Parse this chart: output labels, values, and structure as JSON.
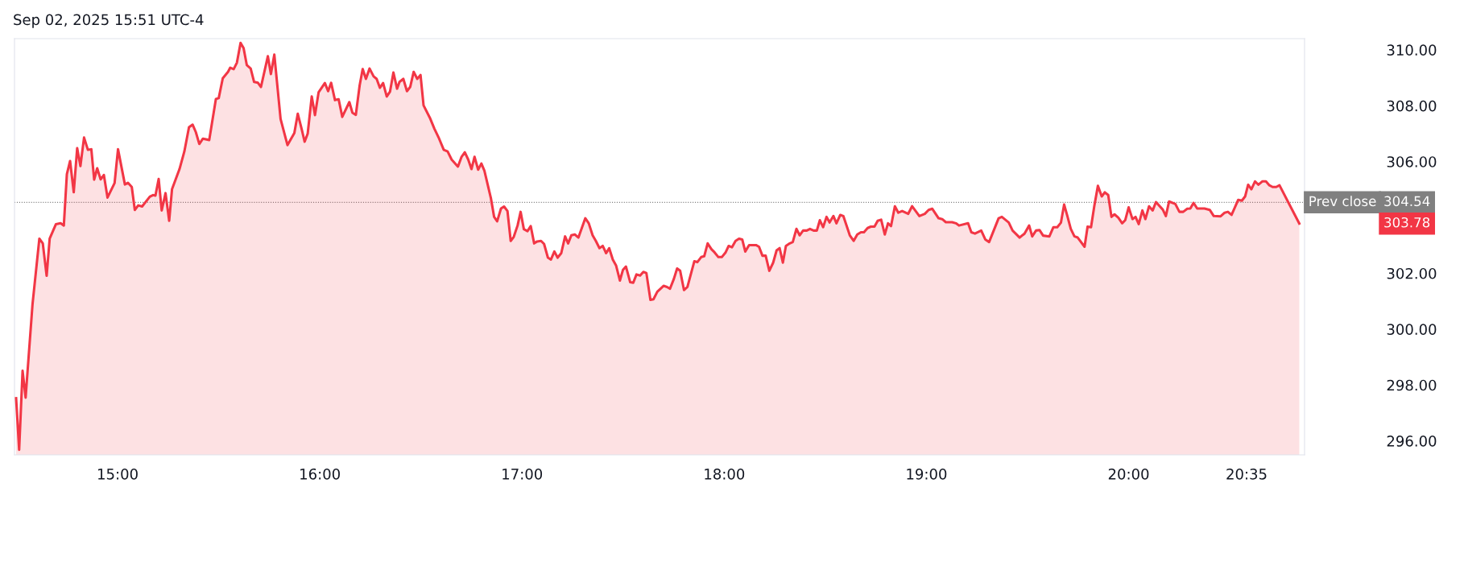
{
  "chart_data": {
    "type": "area",
    "annotations": [
      "Sep 02, 2025 15:51 UTC-4",
      "304.54",
      "303.78"
    ],
    "x": [
      14.498,
      14.513,
      14.53,
      14.545,
      14.579,
      14.613,
      14.63,
      14.649,
      14.664,
      14.695,
      14.718,
      14.734,
      14.749,
      14.765,
      14.783,
      14.8,
      14.816,
      14.834,
      14.853,
      14.87,
      14.884,
      14.899,
      14.916,
      14.932,
      14.95,
      14.985,
      15.002,
      15.036,
      15.051,
      15.07,
      15.085,
      15.102,
      15.121,
      15.159,
      15.175,
      15.187,
      15.203,
      15.218,
      15.237,
      15.255,
      15.269,
      15.306,
      15.33,
      15.353,
      15.371,
      15.387,
      15.404,
      15.422,
      15.453,
      15.486,
      15.5,
      15.52,
      15.546,
      15.557,
      15.574,
      15.59,
      15.608,
      15.623,
      15.639,
      15.658,
      15.675,
      15.694,
      15.709,
      15.743,
      15.758,
      15.775,
      15.806,
      15.84,
      15.874,
      15.891,
      15.91,
      15.925,
      15.94,
      15.96,
      15.976,
      15.994,
      16.025,
      16.041,
      16.056,
      16.075,
      16.093,
      16.111,
      16.146,
      16.161,
      16.178,
      16.197,
      16.212,
      16.228,
      16.246,
      16.266,
      16.281,
      16.297,
      16.313,
      16.331,
      16.347,
      16.364,
      16.382,
      16.394,
      16.413,
      16.431,
      16.447,
      16.464,
      16.482,
      16.498,
      16.513,
      16.544,
      16.567,
      16.59,
      16.613,
      16.632,
      16.652,
      16.683,
      16.701,
      16.717,
      16.734,
      16.75,
      16.765,
      16.783,
      16.799,
      16.814,
      16.846,
      16.862,
      16.877,
      16.896,
      16.911,
      16.928,
      16.944,
      16.959,
      16.978,
      16.993,
      17.009,
      17.027,
      17.043,
      17.06,
      17.075,
      17.094,
      17.109,
      17.128,
      17.143,
      17.16,
      17.176,
      17.194,
      17.213,
      17.228,
      17.244,
      17.261,
      17.279,
      17.313,
      17.33,
      17.349,
      17.365,
      17.383,
      17.399,
      17.416,
      17.431,
      17.449,
      17.465,
      17.484,
      17.499,
      17.514,
      17.535,
      17.55,
      17.566,
      17.584,
      17.6,
      17.615,
      17.635,
      17.65,
      17.669,
      17.685,
      17.7,
      17.717,
      17.732,
      17.751,
      17.767,
      17.782,
      17.801,
      17.818,
      17.852,
      17.867,
      17.886,
      17.901,
      17.918,
      17.937,
      17.952,
      17.971,
      17.988,
      18.007,
      18.022,
      18.038,
      18.056,
      18.073,
      18.089,
      18.104,
      18.123,
      18.157,
      18.172,
      18.189,
      18.205,
      18.223,
      18.242,
      18.259,
      18.274,
      18.29,
      18.305,
      18.324,
      18.339,
      18.357,
      18.373,
      18.39,
      18.408,
      18.424,
      18.442,
      18.458,
      18.473,
      18.489,
      18.506,
      18.521,
      18.54,
      18.555,
      18.574,
      18.589,
      18.621,
      18.64,
      18.658,
      18.676,
      18.691,
      18.709,
      18.725,
      18.743,
      18.759,
      18.776,
      18.794,
      18.81,
      18.825,
      18.844,
      18.861,
      18.88,
      18.91,
      18.929,
      18.965,
      18.992,
      19.011,
      19.029,
      19.06,
      19.078,
      19.096,
      19.127,
      19.146,
      19.161,
      19.206,
      19.222,
      19.24,
      19.271,
      19.291,
      19.31,
      19.357,
      19.373,
      19.407,
      19.426,
      19.461,
      19.485,
      19.508,
      19.523,
      19.542,
      19.559,
      19.577,
      19.608,
      19.628,
      19.647,
      19.665,
      19.681,
      19.697,
      19.714,
      19.732,
      19.748,
      19.782,
      19.797,
      19.814,
      19.83,
      19.848,
      19.867,
      19.882,
      19.899,
      19.915,
      19.93,
      19.949,
      19.968,
      19.983,
      20.0,
      20.019,
      20.034,
      20.05,
      20.068,
      20.083,
      20.101,
      20.119,
      20.135,
      20.169,
      20.184,
      20.2,
      20.231,
      20.251,
      20.27,
      20.29,
      20.305,
      20.321,
      20.339,
      20.375,
      20.401,
      20.421,
      20.455,
      20.475,
      20.491,
      20.509,
      20.542,
      20.56,
      20.576,
      20.591,
      20.607,
      20.625,
      20.642,
      20.661,
      20.679,
      20.696,
      20.712,
      20.73,
      20.746,
      20.844
    ],
    "series": [
      {
        "color": "#f23645",
        "values": [
          297.53,
          295.68,
          298.51,
          297.55,
          300.88,
          303.24,
          303.07,
          301.91,
          303.24,
          303.76,
          303.79,
          303.71,
          305.55,
          306.02,
          304.9,
          306.48,
          305.84,
          306.86,
          306.42,
          306.44,
          305.35,
          305.76,
          305.36,
          305.52,
          304.71,
          305.23,
          306.44,
          305.18,
          305.24,
          305.09,
          304.27,
          304.43,
          304.39,
          304.74,
          304.8,
          304.78,
          305.38,
          304.25,
          304.87,
          303.88,
          305.01,
          305.73,
          306.36,
          307.23,
          307.32,
          307.05,
          306.63,
          306.82,
          306.77,
          308.24,
          308.27,
          308.98,
          309.21,
          309.36,
          309.31,
          309.54,
          310.25,
          310.06,
          309.45,
          309.33,
          308.85,
          308.82,
          308.67,
          309.77,
          309.13,
          309.83,
          307.52,
          306.59,
          307.02,
          307.71,
          307.17,
          306.71,
          307.0,
          308.33,
          307.66,
          308.48,
          308.81,
          308.52,
          308.82,
          308.2,
          308.23,
          307.6,
          308.13,
          307.75,
          307.67,
          308.73,
          309.31,
          308.96,
          309.33,
          309.05,
          308.96,
          308.64,
          308.81,
          308.33,
          308.5,
          309.19,
          308.61,
          308.85,
          308.96,
          308.52,
          308.67,
          309.21,
          308.96,
          309.1,
          308.01,
          307.57,
          307.17,
          306.82,
          306.42,
          306.36,
          306.07,
          305.82,
          306.17,
          306.33,
          306.07,
          305.73,
          306.17,
          305.71,
          305.93,
          305.67,
          304.69,
          304.02,
          303.86,
          304.32,
          304.39,
          304.23,
          303.16,
          303.3,
          303.71,
          304.2,
          303.58,
          303.51,
          303.69,
          303.07,
          303.14,
          303.16,
          303.05,
          302.56,
          302.49,
          302.78,
          302.56,
          302.72,
          303.32,
          303.07,
          303.36,
          303.39,
          303.28,
          303.97,
          303.79,
          303.36,
          303.16,
          302.9,
          302.98,
          302.72,
          302.9,
          302.49,
          302.28,
          301.74,
          302.12,
          302.24,
          301.68,
          301.66,
          301.96,
          301.92,
          302.05,
          302.01,
          301.05,
          301.07,
          301.34,
          301.45,
          301.55,
          301.51,
          301.45,
          301.8,
          302.17,
          302.09,
          301.4,
          301.51,
          302.43,
          302.4,
          302.58,
          302.61,
          303.07,
          302.86,
          302.75,
          302.58,
          302.58,
          302.75,
          302.98,
          302.93,
          303.16,
          303.24,
          303.21,
          302.78,
          303.01,
          303.01,
          302.95,
          302.63,
          302.63,
          302.09,
          302.38,
          302.82,
          302.9,
          302.38,
          302.98,
          303.07,
          303.12,
          303.59,
          303.36,
          303.53,
          303.53,
          303.59,
          303.53,
          303.53,
          303.9,
          303.65,
          304.02,
          303.82,
          304.05,
          303.79,
          304.09,
          304.05,
          303.36,
          303.16,
          303.39,
          303.47,
          303.47,
          303.62,
          303.67,
          303.67,
          303.88,
          303.92,
          303.39,
          303.79,
          303.69,
          304.4,
          304.17,
          304.23,
          304.13,
          304.4,
          304.05,
          304.13,
          304.27,
          304.31,
          303.97,
          303.94,
          303.83,
          303.83,
          303.79,
          303.71,
          303.79,
          303.47,
          303.42,
          303.53,
          303.21,
          303.12,
          303.97,
          304.02,
          303.82,
          303.53,
          303.28,
          303.42,
          303.71,
          303.32,
          303.53,
          303.55,
          303.35,
          303.32,
          303.65,
          303.65,
          303.81,
          304.46,
          304.05,
          303.59,
          303.32,
          303.28,
          302.95,
          303.67,
          303.65,
          304.4,
          305.13,
          304.75,
          304.9,
          304.8,
          304.02,
          304.11,
          303.99,
          303.79,
          303.9,
          304.36,
          303.94,
          304.02,
          303.76,
          304.25,
          303.94,
          304.4,
          304.25,
          304.55,
          304.28,
          304.05,
          304.57,
          304.48,
          304.2,
          304.2,
          304.31,
          304.32,
          304.52,
          304.32,
          304.32,
          304.27,
          304.05,
          304.04,
          304.17,
          304.2,
          304.09,
          304.63,
          304.6,
          304.75,
          305.17,
          305.01,
          305.29,
          305.17,
          305.29,
          305.29,
          305.15,
          305.09,
          305.09,
          305.15,
          303.78
        ]
      }
    ],
    "xlim": [
      14.49,
      20.87
    ],
    "ylim": [
      295.5,
      310.4
    ],
    "xticks": [
      {
        "value": 15,
        "label": "15:00"
      },
      {
        "value": 16,
        "label": "16:00"
      },
      {
        "value": 17,
        "label": "17:00"
      },
      {
        "value": 18,
        "label": "18:00"
      },
      {
        "value": 19,
        "label": "19:00"
      },
      {
        "value": 20,
        "label": "20:00"
      },
      {
        "value": 20.5833,
        "label": "20:35"
      }
    ],
    "yticks": [
      {
        "value": 296,
        "label": "296.00"
      },
      {
        "value": 298,
        "label": "298.00"
      },
      {
        "value": 300,
        "label": "300.00"
      },
      {
        "value": 302,
        "label": "302.00"
      },
      {
        "value": 306,
        "label": "306.00"
      },
      {
        "value": 308,
        "label": "308.00"
      },
      {
        "value": 310,
        "label": "310.00"
      }
    ],
    "ref_lines": [
      {
        "axis": "y",
        "value": 304.54,
        "label": "Prev close",
        "color": "#808080",
        "line_style": "dotted"
      }
    ],
    "grid": false
  }
}
